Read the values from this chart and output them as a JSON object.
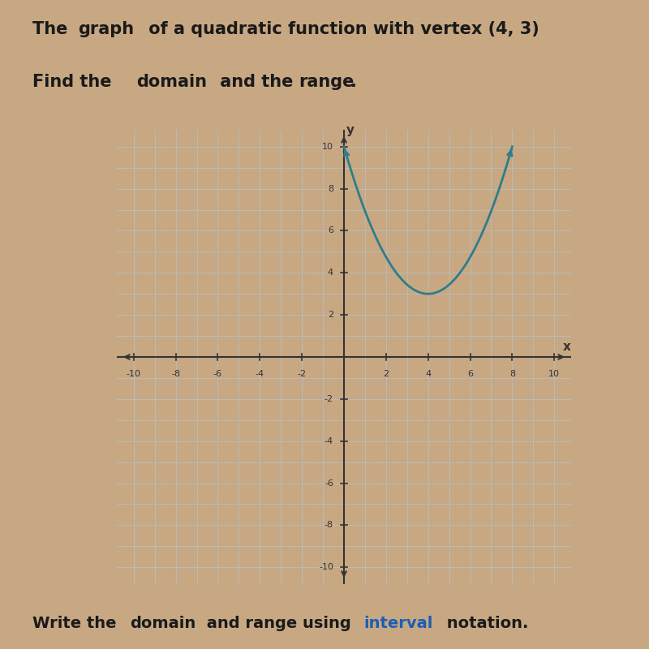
{
  "title_line1": "The graph of a quadratic function with vertex (4, 3)",
  "title_line2": "Find the domain and the range.",
  "footer_text": "Write the domain and range using interval notation.",
  "vertex": [
    4,
    3
  ],
  "a": 0.3333,
  "x_range": [
    -10,
    10
  ],
  "y_range": [
    -10,
    10
  ],
  "curve_color": "#2e7d8a",
  "curve_linewidth": 2.0,
  "grid_color": "#b0c4d0",
  "axis_color": "#333333",
  "background_color": "#f5e6d0",
  "outer_background": "#c8a882",
  "text_color": "#1a1a1a",
  "tick_labels_x": [
    -10,
    -8,
    -6,
    -4,
    -2,
    2,
    4,
    6,
    8,
    10
  ],
  "tick_labels_y_pos": [
    -10,
    -8,
    -6,
    -4,
    -2,
    2,
    4,
    6,
    8,
    10
  ],
  "plot_x_start": 0.9,
  "plot_x_end": 8.0,
  "plot_y_clip": 10.0
}
